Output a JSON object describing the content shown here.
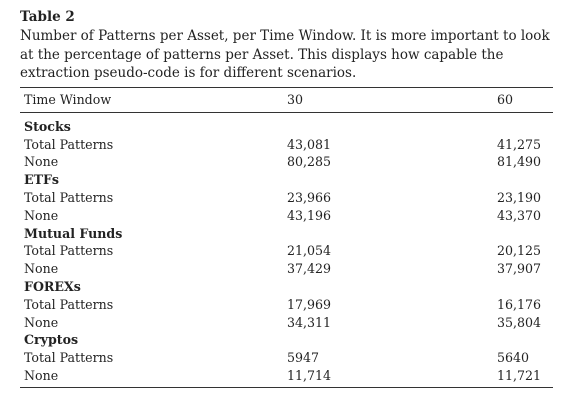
{
  "table": {
    "label": "Table 2",
    "caption": "Number of Patterns per Asset, per Time Window. It is more important to look at the percentage of patterns per Asset. This displays how capable the extraction pseudo-code is for different scenarios.",
    "header": [
      "Time Window",
      "30",
      "60"
    ],
    "groups": [
      {
        "name": "Stocks",
        "rows": [
          {
            "label": "Total Patterns",
            "v30": "43,081",
            "v60": "41,275"
          },
          {
            "label": "None",
            "v30": "80,285",
            "v60": "81,490"
          }
        ]
      },
      {
        "name": "ETFs",
        "rows": [
          {
            "label": "Total Patterns",
            "v30": "23,966",
            "v60": "23,190"
          },
          {
            "label": "None",
            "v30": "43,196",
            "v60": "43,370"
          }
        ]
      },
      {
        "name": "Mutual Funds",
        "rows": [
          {
            "label": "Total Patterns",
            "v30": "21,054",
            "v60": "20,125"
          },
          {
            "label": "None",
            "v30": "37,429",
            "v60": "37,907"
          }
        ]
      },
      {
        "name": "FOREXs",
        "rows": [
          {
            "label": "Total Patterns",
            "v30": "17,969",
            "v60": "16,176"
          },
          {
            "label": "None",
            "v30": "34,311",
            "v60": "35,804"
          }
        ]
      },
      {
        "name": "Cryptos",
        "rows": [
          {
            "label": "Total Patterns",
            "v30": "5947",
            "v60": "5640"
          },
          {
            "label": "None",
            "v30": "11,714",
            "v60": "11,721"
          }
        ]
      }
    ]
  }
}
